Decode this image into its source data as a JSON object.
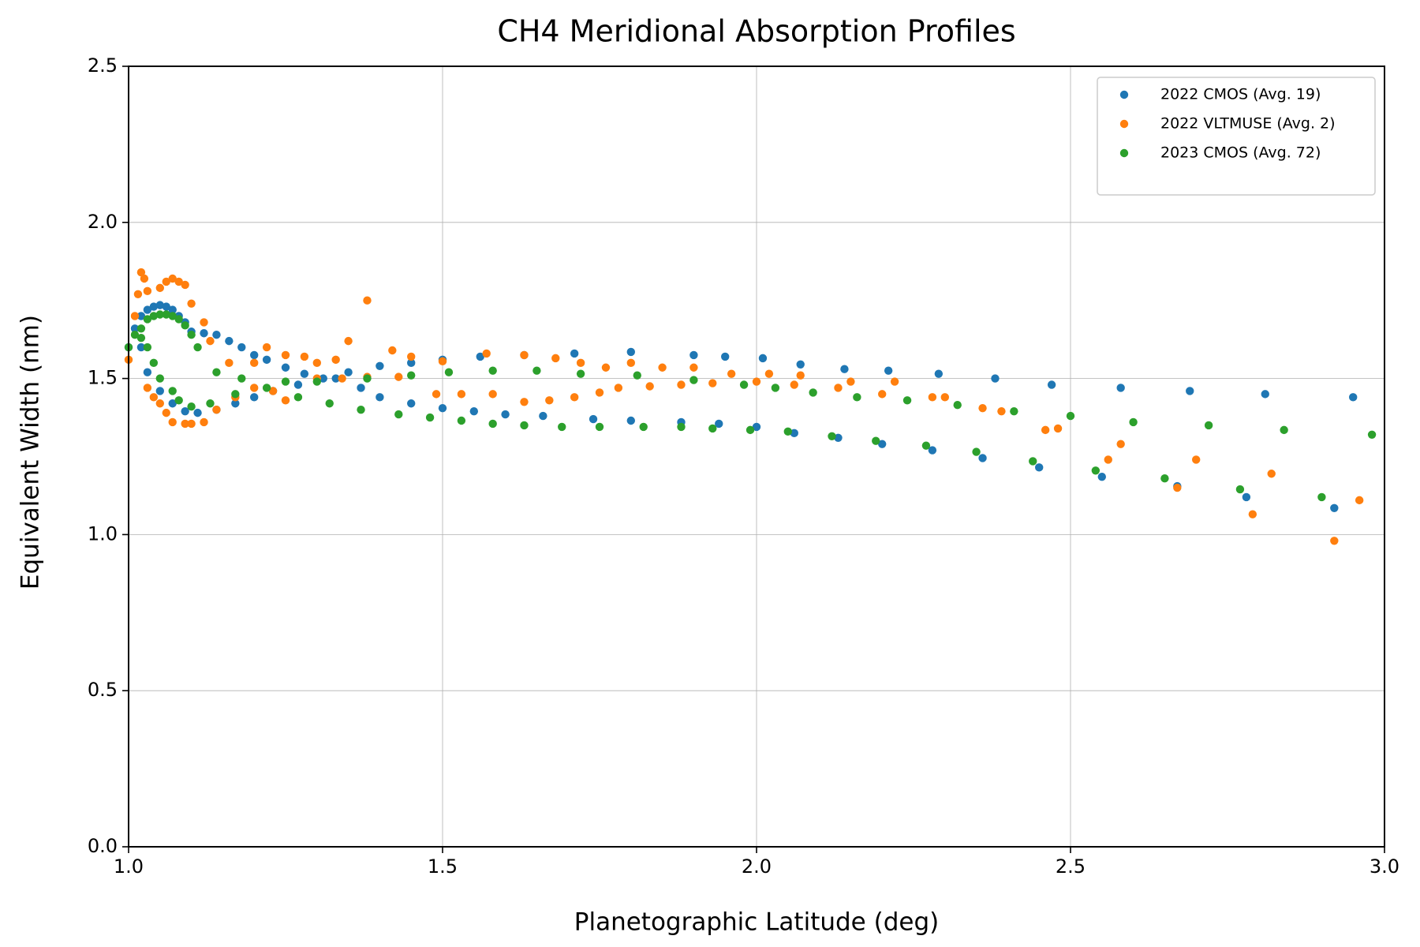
{
  "chart_data": {
    "type": "scatter",
    "title": "CH4 Meridional Absorption Profiles",
    "x_label": "Planetographic Latitude (deg)",
    "y_label": "Equivalent Width (nm)",
    "xlim": [
      1.0,
      3.0
    ],
    "ylim": [
      0.0,
      2.5
    ],
    "xticks": [
      {
        "value": 1,
        "label": "1.0"
      },
      1.5,
      {
        "value": 2,
        "label": "2.0"
      },
      2.5,
      {
        "value": 3,
        "label": "3.0"
      }
    ],
    "yticks": [
      {
        "value": 0,
        "label": "0.0"
      },
      0.5,
      {
        "value": 1,
        "label": "1.0"
      },
      1.5,
      {
        "value": 2,
        "label": "2.0"
      },
      2.5
    ],
    "grid": true,
    "legend": "upper right",
    "series": [
      {
        "name": "2022 CMOS (Avg. 19)",
        "color": "#1f77b4",
        "x": [
          1.0,
          1.01,
          1.02,
          1.03,
          1.04,
          1.05,
          1.06,
          1.07,
          1.08,
          1.09,
          1.1,
          1.12,
          1.14,
          1.16,
          1.18,
          1.2,
          1.22,
          1.25,
          1.28,
          1.31,
          1.35,
          1.4,
          1.45,
          1.5,
          1.56,
          1.63,
          1.71,
          1.8,
          1.9,
          1.95,
          2.01,
          2.07,
          2.14,
          2.21,
          2.29,
          2.38,
          2.47,
          2.58,
          2.69,
          2.81,
          2.95,
          1.02,
          1.03,
          1.05,
          1.07,
          1.09,
          1.11,
          1.14,
          1.17,
          1.2,
          1.23,
          1.27,
          1.33,
          1.37,
          1.4,
          1.45,
          1.5,
          1.55,
          1.6,
          1.66,
          1.74,
          1.8,
          1.88,
          1.94,
          2.0,
          2.06,
          2.13,
          2.2,
          2.28,
          2.36,
          2.45,
          2.55,
          2.67,
          2.78,
          2.92
        ],
        "values": [
          1.6,
          1.66,
          1.7,
          1.72,
          1.73,
          1.735,
          1.73,
          1.72,
          1.7,
          1.68,
          1.65,
          1.645,
          1.64,
          1.62,
          1.6,
          1.575,
          1.56,
          1.535,
          1.515,
          1.5,
          1.52,
          1.54,
          1.55,
          1.56,
          1.57,
          1.575,
          1.58,
          1.585,
          1.575,
          1.57,
          1.565,
          1.545,
          1.53,
          1.525,
          1.515,
          1.5,
          1.48,
          1.47,
          1.46,
          1.45,
          1.44,
          1.6,
          1.52,
          1.46,
          1.42,
          1.395,
          1.39,
          1.4,
          1.42,
          1.44,
          1.46,
          1.48,
          1.5,
          1.47,
          1.44,
          1.42,
          1.405,
          1.395,
          1.385,
          1.38,
          1.37,
          1.365,
          1.36,
          1.355,
          1.345,
          1.325,
          1.31,
          1.29,
          1.27,
          1.245,
          1.215,
          1.185,
          1.155,
          1.12,
          1.085
        ]
      },
      {
        "name": "2022 VLTMUSE (Avg. 2)",
        "color": "#ff7f0e",
        "x": [
          1.0,
          1.01,
          1.015,
          1.02,
          1.025,
          1.03,
          1.05,
          1.06,
          1.07,
          1.08,
          1.09,
          1.1,
          1.12,
          1.13,
          1.16,
          1.2,
          1.22,
          1.25,
          1.28,
          1.3,
          1.33,
          1.35,
          1.38,
          1.42,
          1.45,
          1.5,
          1.57,
          1.63,
          1.68,
          1.72,
          1.76,
          1.8,
          1.85,
          1.9,
          1.96,
          2.02,
          2.07,
          2.15,
          2.22,
          2.3,
          2.36,
          2.39,
          2.46,
          2.56,
          2.67,
          2.79,
          2.92,
          1.03,
          1.04,
          1.05,
          1.06,
          1.07,
          1.09,
          1.1,
          1.12,
          1.14,
          1.17,
          1.2,
          1.23,
          1.25,
          1.3,
          1.34,
          1.38,
          1.43,
          1.49,
          1.53,
          1.58,
          1.63,
          1.67,
          1.71,
          1.75,
          1.78,
          1.83,
          1.88,
          1.93,
          2.0,
          2.06,
          2.13,
          2.2,
          2.28,
          2.48,
          2.58,
          2.7,
          2.82,
          2.96
        ],
        "values": [
          1.56,
          1.7,
          1.77,
          1.84,
          1.82,
          1.78,
          1.79,
          1.81,
          1.82,
          1.81,
          1.8,
          1.74,
          1.68,
          1.62,
          1.55,
          1.55,
          1.6,
          1.575,
          1.57,
          1.55,
          1.56,
          1.62,
          1.75,
          1.59,
          1.57,
          1.555,
          1.58,
          1.575,
          1.565,
          1.55,
          1.535,
          1.55,
          1.535,
          1.535,
          1.515,
          1.515,
          1.51,
          1.49,
          1.49,
          1.44,
          1.405,
          1.395,
          1.335,
          1.24,
          1.15,
          1.065,
          0.98,
          1.47,
          1.44,
          1.42,
          1.39,
          1.36,
          1.355,
          1.355,
          1.36,
          1.4,
          1.44,
          1.47,
          1.46,
          1.43,
          1.5,
          1.5,
          1.505,
          1.505,
          1.45,
          1.45,
          1.45,
          1.425,
          1.43,
          1.44,
          1.455,
          1.47,
          1.475,
          1.48,
          1.485,
          1.49,
          1.48,
          1.47,
          1.45,
          1.44,
          1.34,
          1.29,
          1.24,
          1.195,
          1.11
        ]
      },
      {
        "name": "2023 CMOS (Avg. 72)",
        "color": "#2ca02c",
        "x": [
          1.0,
          1.01,
          1.02,
          1.03,
          1.04,
          1.05,
          1.06,
          1.07,
          1.08,
          1.09,
          1.1,
          1.11,
          1.14,
          1.18,
          1.25,
          1.3,
          1.38,
          1.45,
          1.51,
          1.58,
          1.65,
          1.72,
          1.81,
          1.9,
          1.98,
          2.03,
          2.09,
          2.16,
          2.24,
          2.32,
          2.41,
          2.5,
          2.6,
          2.72,
          2.84,
          2.98,
          1.02,
          1.03,
          1.04,
          1.05,
          1.07,
          1.08,
          1.1,
          1.13,
          1.17,
          1.22,
          1.27,
          1.32,
          1.37,
          1.43,
          1.48,
          1.53,
          1.58,
          1.63,
          1.69,
          1.75,
          1.82,
          1.88,
          1.93,
          1.99,
          2.05,
          2.12,
          2.19,
          2.27,
          2.35,
          2.44,
          2.54,
          2.65,
          2.77,
          2.9
        ],
        "values": [
          1.6,
          1.64,
          1.66,
          1.69,
          1.7,
          1.705,
          1.705,
          1.7,
          1.69,
          1.67,
          1.64,
          1.6,
          1.52,
          1.5,
          1.49,
          1.49,
          1.5,
          1.51,
          1.52,
          1.525,
          1.525,
          1.515,
          1.51,
          1.495,
          1.48,
          1.47,
          1.455,
          1.44,
          1.43,
          1.415,
          1.395,
          1.38,
          1.36,
          1.35,
          1.335,
          1.32,
          1.63,
          1.6,
          1.55,
          1.5,
          1.46,
          1.43,
          1.41,
          1.42,
          1.45,
          1.47,
          1.44,
          1.42,
          1.4,
          1.385,
          1.375,
          1.365,
          1.355,
          1.35,
          1.345,
          1.345,
          1.345,
          1.345,
          1.34,
          1.335,
          1.33,
          1.315,
          1.3,
          1.285,
          1.265,
          1.235,
          1.205,
          1.18,
          1.145,
          1.12
        ]
      }
    ]
  }
}
